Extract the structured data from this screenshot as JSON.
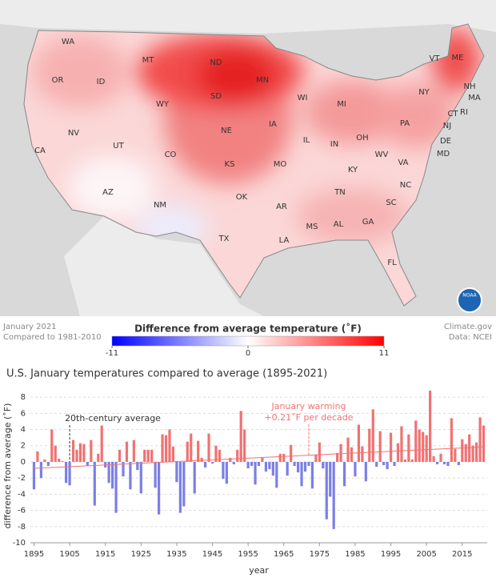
{
  "map": {
    "states": [
      "WA",
      "OR",
      "CA",
      "ID",
      "NV",
      "MT",
      "WY",
      "UT",
      "AZ",
      "CO",
      "NM",
      "ND",
      "SD",
      "NE",
      "KS",
      "OK",
      "TX",
      "MN",
      "IA",
      "MO",
      "AR",
      "LA",
      "WI",
      "IL",
      "MI",
      "IN",
      "OH",
      "KY",
      "TN",
      "MS",
      "AL",
      "GA",
      "FL",
      "SC",
      "NC",
      "VA",
      "WV",
      "PA",
      "NY",
      "VT",
      "NH",
      "ME",
      "MA",
      "RI",
      "CT",
      "NJ",
      "DE",
      "MD"
    ],
    "caption": [
      "January 2021",
      "Compared to 1981-2010"
    ],
    "credit": [
      "Climate.gov",
      "Data: NCEI"
    ],
    "logo": "NOAA",
    "legend": {
      "title": "Difference from average temperature (˚F)",
      "ticks": [
        -11,
        0,
        11
      ],
      "colors": [
        "#0000ff",
        "#ffffff",
        "#ff0000"
      ]
    }
  },
  "chart_data": {
    "type": "bar",
    "title": "U.S. January temperatures compared to average (1895-2021)",
    "xlabel": "year",
    "ylabel": "difference from average (˚F)",
    "x": [
      1895,
      1896,
      1897,
      1898,
      1899,
      1900,
      1901,
      1902,
      1903,
      1904,
      1905,
      1906,
      1907,
      1908,
      1909,
      1910,
      1911,
      1912,
      1913,
      1914,
      1915,
      1916,
      1917,
      1918,
      1919,
      1920,
      1921,
      1922,
      1923,
      1924,
      1925,
      1926,
      1927,
      1928,
      1929,
      1930,
      1931,
      1932,
      1933,
      1934,
      1935,
      1936,
      1937,
      1938,
      1939,
      1940,
      1941,
      1942,
      1943,
      1944,
      1945,
      1946,
      1947,
      1948,
      1949,
      1950,
      1951,
      1952,
      1953,
      1954,
      1955,
      1956,
      1957,
      1958,
      1959,
      1960,
      1961,
      1962,
      1963,
      1964,
      1965,
      1966,
      1967,
      1968,
      1969,
      1970,
      1971,
      1972,
      1973,
      1974,
      1975,
      1976,
      1977,
      1978,
      1979,
      1980,
      1981,
      1982,
      1983,
      1984,
      1985,
      1986,
      1987,
      1988,
      1989,
      1990,
      1991,
      1992,
      1993,
      1994,
      1995,
      1996,
      1997,
      1998,
      1999,
      2000,
      2001,
      2002,
      2003,
      2004,
      2005,
      2006,
      2007,
      2008,
      2009,
      2010,
      2011,
      2012,
      2013,
      2014,
      2015,
      2016,
      2017,
      2018,
      2019,
      2020,
      2021
    ],
    "values": [
      -3.4,
      1.3,
      -2.0,
      0.3,
      -0.5,
      4.0,
      2.0,
      0.4,
      0.1,
      -2.6,
      -2.9,
      2.7,
      1.5,
      2.3,
      2.2,
      -0.5,
      2.7,
      -5.4,
      1.0,
      4.5,
      -0.7,
      -2.6,
      -3.3,
      -6.3,
      1.5,
      -1.8,
      2.5,
      -3.4,
      2.7,
      -1.0,
      -3.9,
      1.5,
      1.5,
      1.5,
      -3.2,
      -6.5,
      3.4,
      3.3,
      4.0,
      1.9,
      -2.5,
      -6.3,
      -5.5,
      2.5,
      3.5,
      -3.9,
      2.6,
      0.5,
      -0.7,
      3.5,
      -0.2,
      2.0,
      1.5,
      -2.1,
      -2.7,
      0.5,
      -0.3,
      1.5,
      6.3,
      4.0,
      -0.8,
      -0.5,
      -2.8,
      -0.5,
      0.5,
      -1.2,
      -0.9,
      -1.7,
      -3.2,
      1.0,
      1.0,
      -1.7,
      2.1,
      -0.5,
      -1.3,
      -3.0,
      -1.2,
      -0.5,
      -3.3,
      0.9,
      2.4,
      -0.8,
      -7.1,
      -4.3,
      -8.3,
      1.1,
      2.2,
      -3.0,
      3.0,
      1.8,
      -1.8,
      4.6,
      1.9,
      -2.4,
      4.1,
      6.5,
      -0.6,
      3.8,
      -0.4,
      -0.9,
      3.6,
      -0.5,
      2.3,
      4.4,
      0.3,
      3.4,
      0.3,
      5.1,
      4.0,
      3.7,
      3.3,
      8.8,
      0.7,
      -0.3,
      1.0,
      -0.3,
      -0.5,
      5.4,
      1.6,
      -0.4,
      2.8,
      2.2,
      3.4,
      2.0,
      2.4,
      5.5,
      4.5
    ],
    "colors": {
      "positive": "#f07272",
      "negative": "#7b7fe6"
    },
    "trend": {
      "start": -0.8,
      "end": 1.85,
      "color": "#f07272"
    },
    "annotations": [
      {
        "text": "20th-century average",
        "x": 1905,
        "color": "#333333"
      },
      {
        "text": "January warming",
        "text2": "+0.21˚F per decade",
        "x": 1972,
        "color": "#f07272"
      }
    ],
    "xlim": [
      1894,
      2022
    ],
    "ylim": [
      -10,
      9
    ],
    "xticks": [
      1895,
      1905,
      1915,
      1925,
      1935,
      1945,
      1955,
      1965,
      1975,
      1985,
      1995,
      2005,
      2015
    ],
    "yticks": [
      -10,
      -8,
      -6,
      -4,
      -2,
      0,
      2,
      4,
      6,
      8
    ],
    "grid": true
  }
}
